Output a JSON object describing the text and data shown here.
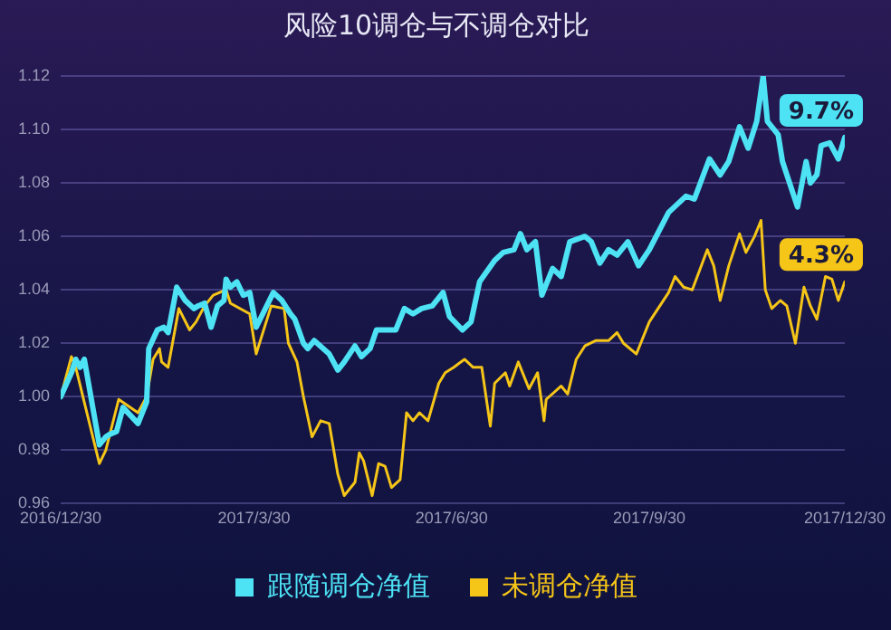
{
  "chart_data": {
    "type": "line",
    "title": "风险10调仓与不调仓对比",
    "xlim": [
      "2016-12-30",
      "2017-12-30"
    ],
    "xticks": [
      {
        "value": "2016-12-30",
        "label": "2016/12/30"
      },
      {
        "value": "2017-03-30",
        "label": "2017/3/30"
      },
      {
        "value": "2017-06-30",
        "label": "2017/6/30"
      },
      {
        "value": "2017-09-30",
        "label": "2017/9/30"
      },
      {
        "value": "2017-12-30",
        "label": "2017/12/30"
      }
    ],
    "ylim": [
      0.96,
      1.12
    ],
    "yticks": [
      {
        "value": 0.96,
        "label": "0.96"
      },
      {
        "value": 0.98,
        "label": "0.98"
      },
      {
        "value": 1.0,
        "label": "1.00"
      },
      {
        "value": 1.02,
        "label": "1.02"
      },
      {
        "value": 1.04,
        "label": "1.04"
      },
      {
        "value": 1.06,
        "label": "1.06"
      },
      {
        "value": 1.08,
        "label": "1.08"
      },
      {
        "value": 1.1,
        "label": "1.10"
      },
      {
        "value": 1.12,
        "label": "1.12"
      }
    ],
    "grid": "y",
    "legend": "bottom",
    "marker": "none",
    "line_style": "solid",
    "series": [
      {
        "name": "跟随调仓净值",
        "color": "#4de3f5",
        "x": [
          "2016-12-30",
          "2017-01-04",
          "2017-01-06",
          "2017-01-08",
          "2017-01-10",
          "2017-01-17",
          "2017-01-20",
          "2017-01-22",
          "2017-01-25",
          "2017-01-28",
          "2017-02-04",
          "2017-02-08",
          "2017-02-09",
          "2017-02-13",
          "2017-02-16",
          "2017-02-18",
          "2017-02-22",
          "2017-02-26",
          "2017-03-02",
          "2017-03-04",
          "2017-03-07",
          "2017-03-10",
          "2017-03-13",
          "2017-03-16",
          "2017-03-17",
          "2017-03-19",
          "2017-03-22",
          "2017-03-25",
          "2017-03-28",
          "2017-03-31",
          "2017-04-08",
          "2017-04-12",
          "2017-04-16",
          "2017-04-18",
          "2017-04-22",
          "2017-04-24",
          "2017-04-27",
          "2017-05-04",
          "2017-05-08",
          "2017-05-11",
          "2017-05-16",
          "2017-05-19",
          "2017-05-23",
          "2017-05-26",
          "2017-06-04",
          "2017-06-08",
          "2017-06-12",
          "2017-06-16",
          "2017-06-21",
          "2017-06-26",
          "2017-06-29",
          "2017-07-05",
          "2017-07-09",
          "2017-07-13",
          "2017-07-20",
          "2017-07-24",
          "2017-07-29",
          "2017-08-01",
          "2017-08-04",
          "2017-08-08",
          "2017-08-11",
          "2017-08-16",
          "2017-08-20",
          "2017-08-24",
          "2017-08-31",
          "2017-09-03",
          "2017-09-07",
          "2017-09-11",
          "2017-09-15",
          "2017-09-20",
          "2017-09-25",
          "2017-09-30",
          "2017-10-09",
          "2017-10-17",
          "2017-10-21",
          "2017-10-28",
          "2017-11-02",
          "2017-11-06",
          "2017-11-11",
          "2017-11-15",
          "2017-11-19",
          "2017-11-22",
          "2017-11-24",
          "2017-11-29",
          "2017-12-01",
          "2017-12-08",
          "2017-12-12",
          "2017-12-14",
          "2017-12-17",
          "2017-12-19",
          "2017-12-23",
          "2017-12-27",
          "2017-12-30"
        ],
        "values": [
          1.0,
          1.009,
          1.014,
          1.011,
          1.014,
          0.982,
          0.985,
          0.986,
          0.987,
          0.996,
          0.99,
          0.998,
          1.018,
          1.025,
          1.026,
          1.024,
          1.041,
          1.036,
          1.033,
          1.034,
          1.035,
          1.026,
          1.034,
          1.036,
          1.044,
          1.041,
          1.043,
          1.038,
          1.039,
          1.026,
          1.039,
          1.036,
          1.031,
          1.029,
          1.02,
          1.018,
          1.021,
          1.016,
          1.01,
          1.013,
          1.019,
          1.015,
          1.018,
          1.025,
          1.025,
          1.033,
          1.031,
          1.033,
          1.034,
          1.039,
          1.03,
          1.025,
          1.028,
          1.043,
          1.051,
          1.054,
          1.055,
          1.061,
          1.055,
          1.058,
          1.038,
          1.048,
          1.045,
          1.058,
          1.06,
          1.058,
          1.05,
          1.055,
          1.053,
          1.058,
          1.049,
          1.055,
          1.069,
          1.075,
          1.074,
          1.089,
          1.083,
          1.088,
          1.101,
          1.093,
          1.103,
          1.12,
          1.103,
          1.098,
          1.088,
          1.071,
          1.088,
          1.08,
          1.083,
          1.094,
          1.095,
          1.089,
          1.097
        ]
      },
      {
        "name": "未调仓净值",
        "color": "#f5c518",
        "x": [
          "2016-12-30",
          "2017-01-04",
          "2017-01-06",
          "2017-01-10",
          "2017-01-17",
          "2017-01-20",
          "2017-01-26",
          "2017-02-04",
          "2017-02-08",
          "2017-02-11",
          "2017-02-14",
          "2017-02-15",
          "2017-02-18",
          "2017-02-23",
          "2017-02-28",
          "2017-03-03",
          "2017-03-07",
          "2017-03-11",
          "2017-03-17",
          "2017-03-19",
          "2017-03-28",
          "2017-03-31",
          "2017-04-07",
          "2017-04-13",
          "2017-04-15",
          "2017-04-19",
          "2017-04-22",
          "2017-04-26",
          "2017-04-30",
          "2017-05-04",
          "2017-05-08",
          "2017-05-11",
          "2017-05-16",
          "2017-05-18",
          "2017-05-20",
          "2017-05-24",
          "2017-05-27",
          "2017-05-30",
          "2017-06-02",
          "2017-06-06",
          "2017-06-09",
          "2017-06-12",
          "2017-06-15",
          "2017-06-19",
          "2017-06-24",
          "2017-06-27",
          "2017-07-01",
          "2017-07-06",
          "2017-07-10",
          "2017-07-14",
          "2017-07-18",
          "2017-07-20",
          "2017-07-25",
          "2017-07-27",
          "2017-07-31",
          "2017-08-05",
          "2017-08-09",
          "2017-08-12",
          "2017-08-13",
          "2017-08-20",
          "2017-08-23",
          "2017-08-27",
          "2017-08-31",
          "2017-09-05",
          "2017-09-11",
          "2017-09-15",
          "2017-09-18",
          "2017-09-24",
          "2017-09-30",
          "2017-10-09",
          "2017-10-12",
          "2017-10-16",
          "2017-10-20",
          "2017-10-27",
          "2017-10-30",
          "2017-11-02",
          "2017-11-06",
          "2017-11-11",
          "2017-11-14",
          "2017-11-18",
          "2017-11-21",
          "2017-11-23",
          "2017-11-26",
          "2017-11-30",
          "2017-12-03",
          "2017-12-07",
          "2017-12-11",
          "2017-12-14",
          "2017-12-17",
          "2017-12-21",
          "2017-12-24",
          "2017-12-27",
          "2017-12-30"
        ],
        "values": [
          1.0,
          1.015,
          1.011,
          null,
          0.975,
          0.98,
          0.999,
          0.994,
          1.0,
          1.014,
          1.018,
          1.013,
          1.011,
          1.033,
          1.025,
          1.028,
          1.034,
          1.038,
          1.04,
          1.035,
          1.031,
          1.016,
          1.034,
          1.033,
          1.02,
          1.013,
          1.0,
          0.985,
          0.991,
          0.99,
          0.971,
          0.963,
          0.968,
          0.979,
          0.976,
          0.963,
          0.975,
          0.974,
          0.966,
          0.969,
          0.994,
          0.991,
          0.994,
          0.991,
          1.005,
          1.009,
          1.011,
          1.014,
          1.011,
          1.011,
          0.989,
          1.005,
          1.009,
          1.004,
          1.013,
          1.003,
          1.009,
          0.991,
          0.999,
          1.004,
          1.001,
          1.014,
          1.019,
          1.021,
          1.021,
          1.024,
          1.02,
          1.016,
          1.028,
          1.039,
          1.045,
          1.041,
          1.04,
          1.055,
          1.049,
          1.036,
          1.049,
          1.061,
          1.054,
          1.06,
          1.066,
          1.04,
          1.033,
          1.036,
          1.034,
          1.02,
          1.041,
          1.034,
          1.029,
          1.045,
          1.044,
          1.036,
          1.043
        ]
      }
    ],
    "annotations": [
      {
        "text": "9.7%",
        "x": "2017-12-30",
        "y": 1.097
      },
      {
        "text": "4.3%",
        "x": "2017-12-30",
        "y": 1.043
      }
    ]
  }
}
